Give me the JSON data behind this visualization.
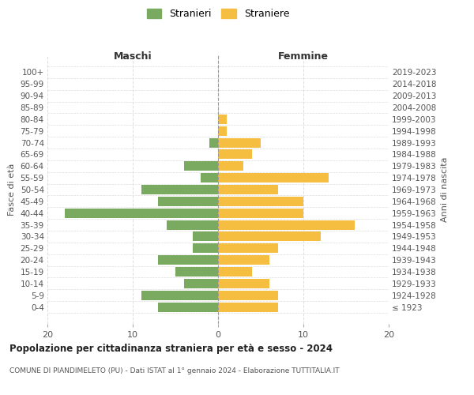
{
  "age_groups": [
    "100+",
    "95-99",
    "90-94",
    "85-89",
    "80-84",
    "75-79",
    "70-74",
    "65-69",
    "60-64",
    "55-59",
    "50-54",
    "45-49",
    "40-44",
    "35-39",
    "30-34",
    "25-29",
    "20-24",
    "15-19",
    "10-14",
    "5-9",
    "0-4"
  ],
  "birth_years": [
    "≤ 1923",
    "1924-1928",
    "1929-1933",
    "1934-1938",
    "1939-1943",
    "1944-1948",
    "1949-1953",
    "1954-1958",
    "1959-1963",
    "1964-1968",
    "1969-1973",
    "1974-1978",
    "1979-1983",
    "1984-1988",
    "1989-1993",
    "1994-1998",
    "1999-2003",
    "2004-2008",
    "2009-2013",
    "2014-2018",
    "2019-2023"
  ],
  "males": [
    0,
    0,
    0,
    0,
    0,
    0,
    1,
    0,
    4,
    2,
    9,
    7,
    18,
    6,
    3,
    3,
    7,
    5,
    4,
    9,
    7
  ],
  "females": [
    0,
    0,
    0,
    0,
    1,
    1,
    5,
    4,
    3,
    13,
    7,
    10,
    10,
    16,
    12,
    7,
    6,
    4,
    6,
    7,
    7
  ],
  "male_color": "#7aaa5f",
  "female_color": "#f5be41",
  "title": "Popolazione per cittadinanza straniera per età e sesso - 2024",
  "subtitle": "COMUNE DI PIANDIMELETO (PU) - Dati ISTAT al 1° gennaio 2024 - Elaborazione TUTTITALIA.IT",
  "xlabel_left": "Maschi",
  "xlabel_right": "Femmine",
  "ylabel_left": "Fasce di età",
  "ylabel_right": "Anni di nascita",
  "legend_stranieri": "Stranieri",
  "legend_straniere": "Straniere",
  "xlim": 20,
  "background_color": "#ffffff",
  "grid_color": "#dddddd",
  "bar_height": 0.8
}
